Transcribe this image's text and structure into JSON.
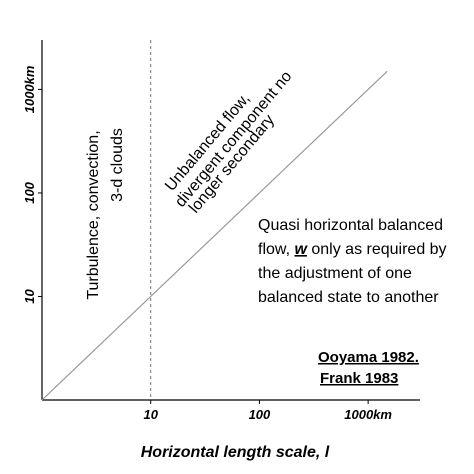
{
  "chart_data": {
    "type": "line",
    "x_label": "Horizontal length scale, l",
    "xlim": [
      1,
      3000
    ],
    "ylim": [
      1,
      3000
    ],
    "log_x": true,
    "log_y": true,
    "xticks": [
      10,
      100,
      {
        "value": 1000,
        "label": "1000km"
      }
    ],
    "yticks": [
      10,
      100,
      {
        "value": 1000,
        "label": "1000km"
      }
    ],
    "vline": 10,
    "series": [
      {
        "color": "#999999",
        "x": [
          1,
          1500
        ],
        "values": [
          1,
          1500
        ]
      }
    ],
    "annotations": {
      "turbulence": [
        "Turbulence, convection,",
        "3-d clouds"
      ],
      "unbalanced": [
        "Unbalanced flow,",
        "divergent component no",
        "longer secondary"
      ],
      "quasi": [
        "Quasi horizontal balanced",
        "flow, ",
        "w",
        " only as required by",
        "the adjustment of one",
        "balanced state to another"
      ],
      "reference": [
        "Ooyama 1982.",
        "Frank 1983"
      ]
    }
  }
}
